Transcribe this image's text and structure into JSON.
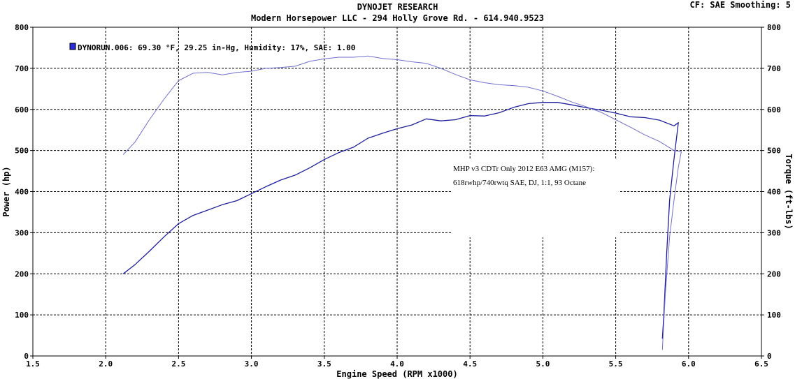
{
  "header": {
    "title": "DYNOJET RESEARCH",
    "subtitle": "Modern Horsepower LLC - 294 Holly Grove Rd. - 614.940.9523",
    "cf_info": "CF: SAE  Smoothing: 5"
  },
  "annotation": {
    "line1": "MHP v3 CDTr Only 2012 E63 AMG (M157):",
    "line2": "618rwhp/740rwtq SAE, DJ, 1:1, 93 Octane"
  },
  "chart_data": {
    "type": "line",
    "xlabel": "Engine Speed (RPM x1000)",
    "ylabel_left": "Power (hp)",
    "ylabel_right": "Torque (ft-lbs)",
    "xlim": [
      1.5,
      6.5
    ],
    "ylim": [
      0,
      800
    ],
    "x_ticks": [
      "1.5",
      "2.0",
      "2.5",
      "3.0",
      "3.5",
      "4.0",
      "4.5",
      "5.0",
      "5.5",
      "6.0",
      "6.5"
    ],
    "y_ticks": [
      "0",
      "100",
      "200",
      "300",
      "400",
      "500",
      "600",
      "700",
      "800"
    ],
    "grid": true,
    "legend": {
      "position": "top-left",
      "entry": "DYNORUN.006: 69.30 °F, 29.25 in-Hg, Humidity: 17%, SAE: 1.00"
    },
    "series": [
      {
        "name": "Power (hp)",
        "color": "#1f1f9e",
        "points": [
          [
            2.12,
            200
          ],
          [
            2.2,
            222
          ],
          [
            2.3,
            255
          ],
          [
            2.4,
            290
          ],
          [
            2.5,
            322
          ],
          [
            2.6,
            342
          ],
          [
            2.7,
            355
          ],
          [
            2.8,
            368
          ],
          [
            2.9,
            378
          ],
          [
            3.0,
            395
          ],
          [
            3.1,
            412
          ],
          [
            3.2,
            428
          ],
          [
            3.3,
            440
          ],
          [
            3.4,
            458
          ],
          [
            3.5,
            478
          ],
          [
            3.6,
            495
          ],
          [
            3.7,
            508
          ],
          [
            3.8,
            530
          ],
          [
            3.9,
            542
          ],
          [
            4.0,
            553
          ],
          [
            4.1,
            562
          ],
          [
            4.2,
            577
          ],
          [
            4.3,
            572
          ],
          [
            4.4,
            575
          ],
          [
            4.5,
            585
          ],
          [
            4.6,
            584
          ],
          [
            4.7,
            592
          ],
          [
            4.8,
            605
          ],
          [
            4.9,
            614
          ],
          [
            5.0,
            617
          ],
          [
            5.1,
            617
          ],
          [
            5.2,
            611
          ],
          [
            5.3,
            604
          ],
          [
            5.4,
            598
          ],
          [
            5.5,
            591
          ],
          [
            5.6,
            582
          ],
          [
            5.7,
            580
          ],
          [
            5.8,
            574
          ],
          [
            5.9,
            560
          ],
          [
            5.93,
            568
          ],
          [
            5.9,
            480
          ],
          [
            5.87,
            380
          ],
          [
            5.85,
            250
          ],
          [
            5.83,
            100
          ],
          [
            5.82,
            42
          ]
        ]
      },
      {
        "name": "Torque (ft-lbs)",
        "color": "#7070d0",
        "points": [
          [
            2.12,
            490
          ],
          [
            2.2,
            520
          ],
          [
            2.3,
            575
          ],
          [
            2.4,
            625
          ],
          [
            2.5,
            670
          ],
          [
            2.6,
            688
          ],
          [
            2.7,
            690
          ],
          [
            2.8,
            684
          ],
          [
            2.9,
            690
          ],
          [
            3.0,
            693
          ],
          [
            3.1,
            700
          ],
          [
            3.2,
            702
          ],
          [
            3.3,
            705
          ],
          [
            3.4,
            717
          ],
          [
            3.5,
            723
          ],
          [
            3.6,
            727
          ],
          [
            3.7,
            727
          ],
          [
            3.8,
            730
          ],
          [
            3.9,
            724
          ],
          [
            4.0,
            721
          ],
          [
            4.1,
            716
          ],
          [
            4.2,
            712
          ],
          [
            4.3,
            700
          ],
          [
            4.4,
            685
          ],
          [
            4.5,
            672
          ],
          [
            4.6,
            665
          ],
          [
            4.7,
            660
          ],
          [
            4.8,
            658
          ],
          [
            4.9,
            654
          ],
          [
            5.0,
            645
          ],
          [
            5.1,
            632
          ],
          [
            5.2,
            618
          ],
          [
            5.3,
            606
          ],
          [
            5.4,
            593
          ],
          [
            5.5,
            575
          ],
          [
            5.6,
            557
          ],
          [
            5.7,
            538
          ],
          [
            5.8,
            522
          ],
          [
            5.9,
            500
          ],
          [
            5.95,
            497
          ],
          [
            5.93,
            460
          ],
          [
            5.9,
            380
          ],
          [
            5.87,
            290
          ],
          [
            5.84,
            150
          ],
          [
            5.82,
            15
          ]
        ]
      }
    ]
  }
}
